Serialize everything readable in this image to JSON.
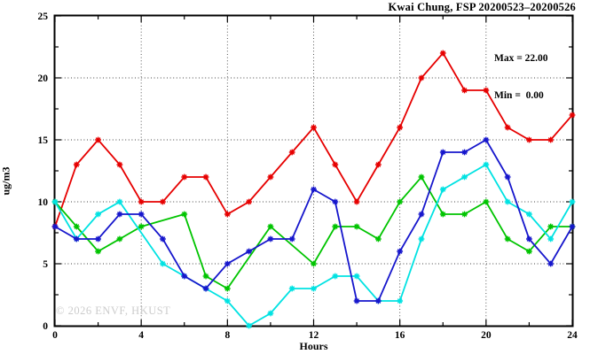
{
  "chart_data": {
    "type": "line",
    "title": "Kwai Chung, FSP 20200523–20200526",
    "stats": {
      "max_label": "Max = 22.00",
      "min_label": "Min =  0.00"
    },
    "xlabel": "Hours",
    "ylabel": "ug/m3",
    "watermark": "© 2026 ENVF, HKUST",
    "xlim": [
      0,
      24
    ],
    "ylim": [
      0,
      25
    ],
    "x_major_ticks": [
      0,
      4,
      8,
      12,
      16,
      20,
      24
    ],
    "x_minor_step": 2,
    "y_major_ticks": [
      0,
      5,
      10,
      15,
      20,
      25
    ],
    "y_minor_step": 2.5,
    "grid_x": [
      4,
      8,
      12,
      16,
      20
    ],
    "grid_y": [
      5,
      10,
      15,
      20
    ],
    "legend_position": "none",
    "grid": true,
    "x": [
      0,
      1,
      2,
      3,
      4,
      5,
      6,
      7,
      8,
      9,
      10,
      11,
      12,
      13,
      14,
      15,
      16,
      17,
      18,
      19,
      20,
      21,
      22,
      23,
      24
    ],
    "series": [
      {
        "name": "red",
        "color": "#e60000",
        "values": [
          8,
          13,
          15,
          13,
          10,
          10,
          12,
          12,
          9,
          10,
          12,
          14,
          16,
          13,
          10,
          13,
          16,
          20,
          22,
          19,
          19,
          16,
          15,
          15,
          17
        ]
      },
      {
        "name": "green",
        "color": "#00c400",
        "values": [
          10,
          8,
          6,
          7,
          8,
          null,
          9,
          4,
          3,
          null,
          8,
          null,
          5,
          8,
          8,
          7,
          10,
          12,
          9,
          9,
          10,
          7,
          6,
          8,
          8
        ]
      },
      {
        "name": "cyan",
        "color": "#00e2e2",
        "values": [
          10,
          7,
          9,
          10,
          null,
          5,
          4,
          3,
          2,
          0,
          1,
          3,
          3,
          4,
          4,
          2,
          2,
          7,
          11,
          12,
          13,
          10,
          9,
          7,
          10
        ]
      },
      {
        "name": "blue",
        "color": "#1616cc",
        "values": [
          8,
          7,
          7,
          9,
          9,
          7,
          4,
          3,
          5,
          6,
          7,
          7,
          11,
          10,
          2,
          2,
          6,
          9,
          14,
          14,
          15,
          12,
          7,
          5,
          8
        ]
      }
    ]
  }
}
